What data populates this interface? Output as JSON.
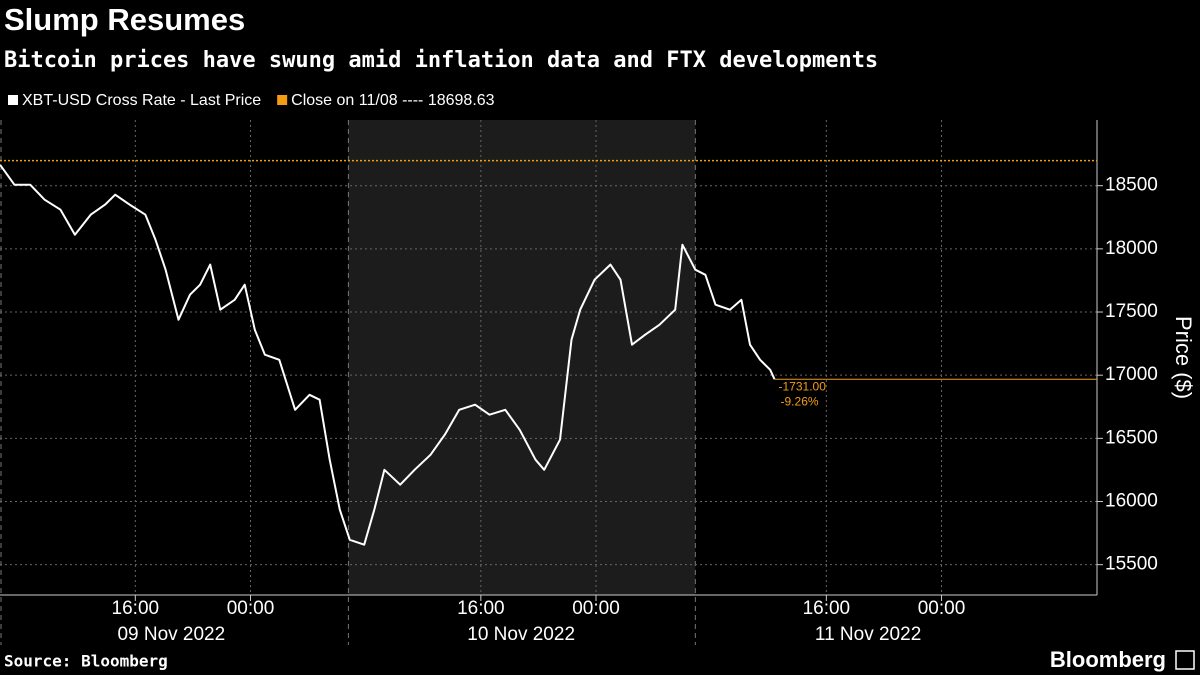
{
  "chart_data": {
    "type": "line",
    "title": "Slump Resumes",
    "subtitle": "Bitcoin prices have swung amid inflation data and FTX developments",
    "source": "Source: Bloomberg",
    "brand": "Bloomberg",
    "y_label": "Price ($)",
    "x": [
      6.6,
      7.6,
      8.7,
      9.7,
      10.8,
      11.8,
      12.9,
      13.9,
      14.6,
      15.6,
      16.7,
      17.4,
      18.1,
      19.0,
      19.8,
      20.5,
      21.2,
      21.9,
      22.9,
      23.6,
      24.3,
      25.0,
      26.0,
      27.1,
      28.1,
      28.8,
      29.5,
      30.2,
      30.9,
      31.9,
      32.6,
      33.3,
      34.4,
      35.4,
      36.5,
      37.5,
      38.5,
      39.6,
      40.6,
      41.7,
      42.7,
      43.8,
      44.4,
      45.5,
      46.3,
      46.9,
      47.9,
      49.0,
      49.7,
      50.5,
      51.4,
      52.4,
      53.5,
      54.0,
      54.9,
      55.6,
      56.3,
      57.3,
      58.1,
      58.7,
      59.4,
      60.1,
      60.4
    ],
    "series": [
      {
        "name": "XBT-USD Cross Rate - Last Price",
        "color": "#ffffff",
        "values": [
          18666,
          18508,
          18508,
          18389,
          18310,
          18112,
          18270,
          18350,
          18429,
          18350,
          18270,
          18072,
          17835,
          17439,
          17637,
          17716,
          17875,
          17518,
          17597,
          17716,
          17360,
          17162,
          17122,
          16726,
          16845,
          16806,
          16331,
          15935,
          15697,
          15658,
          15935,
          16251,
          16133,
          16251,
          16370,
          16529,
          16726,
          16766,
          16687,
          16726,
          16568,
          16331,
          16251,
          16489,
          17281,
          17518,
          17756,
          17875,
          17756,
          17241,
          17320,
          17399,
          17518,
          18033,
          17835,
          17795,
          17558,
          17518,
          17597,
          17241,
          17122,
          17043,
          16968
        ]
      }
    ],
    "close_line": {
      "name": "Close on 11/08 ---- 18698.63",
      "value": 18698.63,
      "color": "#f39c12"
    },
    "annotations": [
      "-1731.00",
      "-9.26%"
    ],
    "xlim": [
      6.6,
      82.8
    ],
    "ylim": [
      15260,
      19020
    ],
    "yticks": [
      15500,
      16000,
      16500,
      17000,
      17500,
      18000,
      18500
    ],
    "xticks": [
      {
        "value": 16,
        "label": "16:00"
      },
      {
        "value": 24,
        "label": "00:00"
      },
      {
        "value": 40,
        "label": "16:00"
      },
      {
        "value": 48,
        "label": "00:00"
      },
      {
        "value": 64,
        "label": "16:00"
      },
      {
        "value": 72,
        "label": "00:00"
      }
    ],
    "day_labels": [
      {
        "value": 18.5,
        "label": "09 Nov 2022"
      },
      {
        "value": 42.8,
        "label": "10 Nov 2022"
      },
      {
        "value": 66.9,
        "label": "11 Nov 2022"
      }
    ],
    "shaded_range": [
      30.8,
      54.9
    ],
    "grid": true
  }
}
